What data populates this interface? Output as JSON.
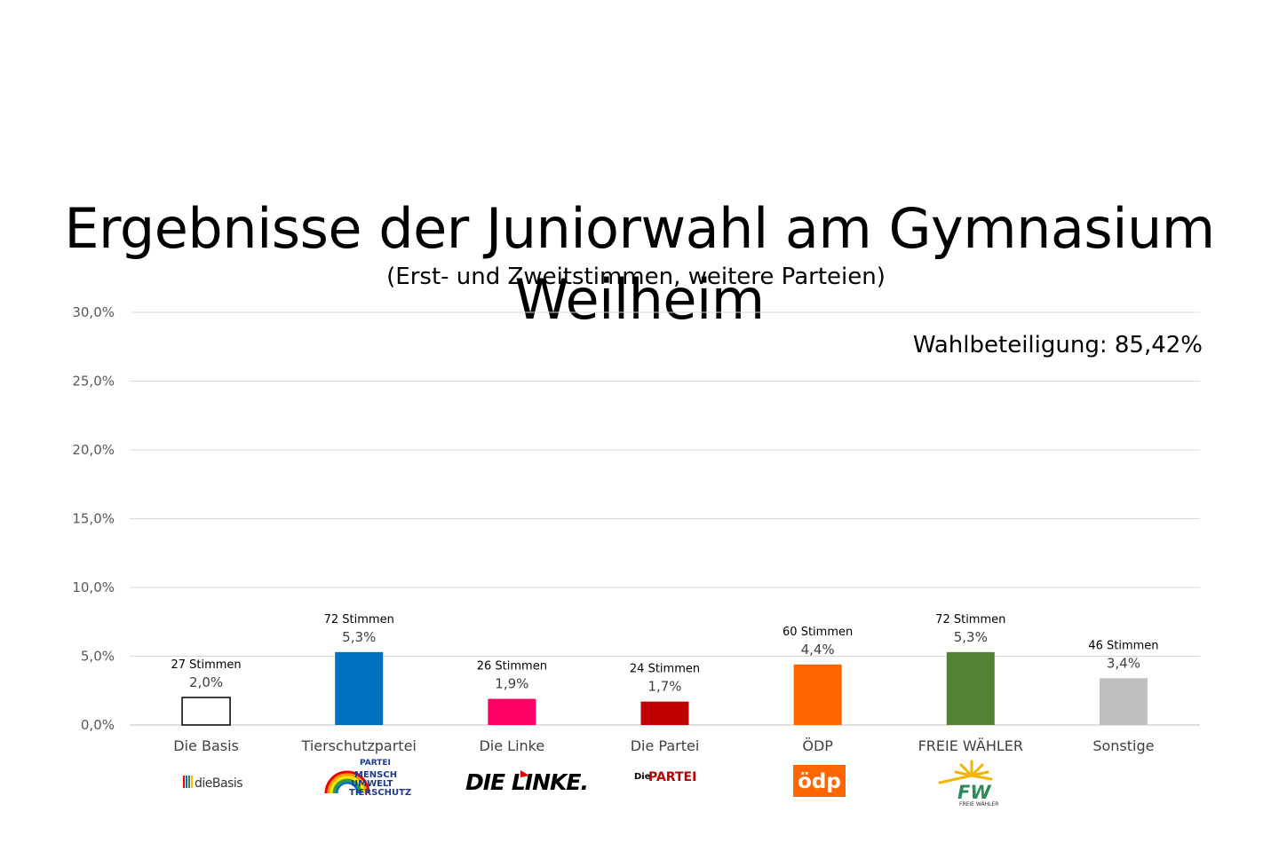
{
  "title": "Ergebnisse der Juniorwahl am Gymnasium Weilheim",
  "subtitle": "(Erst- und Zweitstimmen, weitere Parteien)",
  "turnout_label": "Wahlbeteiligung: 85,42%",
  "colors": {
    "die_basis": "#ffffff",
    "tierschutzpartei": "#0070c0",
    "die_linke": "#ff0066",
    "die_partei": "#c00000",
    "oedp": "#ff6600",
    "freie_waehler": "#548235",
    "sonstige": "#bfbfbf"
  },
  "logos": {
    "die_basis": "dieBasis",
    "tierschutzpartei": [
      "PARTEI",
      "MENSCH",
      "UMWELT",
      "TIERSCHUTZ"
    ],
    "die_linke": "DIE LINKE.",
    "die_partei": [
      "Die",
      "PARTEI"
    ],
    "oedp": "ödp",
    "freie_waehler": [
      "FW",
      "FREIE WÄHLER"
    ]
  },
  "chart_data": {
    "type": "bar",
    "ylim": [
      0,
      30
    ],
    "yticks": [
      "0,0%",
      "5,0%",
      "10,0%",
      "15,0%",
      "20,0%",
      "25,0%",
      "30,0%"
    ],
    "grid": true,
    "categories": [
      "Die Basis",
      "Tierschutzpartei",
      "Die Linke",
      "Die Partei",
      "ÖDP",
      "FREIE WÄHLER",
      "Sonstige"
    ],
    "values": [
      2.0,
      5.3,
      1.9,
      1.7,
      4.4,
      5.3,
      3.4
    ],
    "value_labels": [
      "2,0%",
      "5,3%",
      "1,9%",
      "1,7%",
      "4,4%",
      "5,3%",
      "3,4%"
    ],
    "vote_labels": [
      "27 Stimmen",
      "72 Stimmen",
      "26 Stimmen",
      "24 Stimmen",
      "60 Stimmen",
      "72 Stimmen",
      "46 Stimmen"
    ],
    "bar_colors": [
      "#ffffff",
      "#0070c0",
      "#ff0066",
      "#c00000",
      "#ff6600",
      "#548235",
      "#bfbfbf"
    ],
    "bar_outlines": [
      "#000000",
      "none",
      "none",
      "none",
      "none",
      "none",
      "none"
    ]
  }
}
